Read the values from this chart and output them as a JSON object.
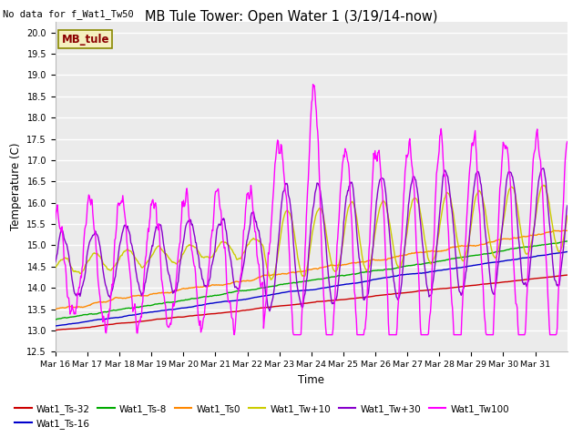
{
  "title": "MB Tule Tower: Open Water 1 (3/19/14-now)",
  "subtitle": "No data for f_Wat1_Tw50",
  "xlabel": "Time",
  "ylabel": "Temperature (C)",
  "ylim": [
    12.5,
    20.25
  ],
  "yticks": [
    12.5,
    13.0,
    13.5,
    14.0,
    14.5,
    15.0,
    15.5,
    16.0,
    16.5,
    17.0,
    17.5,
    18.0,
    18.5,
    19.0,
    19.5,
    20.0
  ],
  "xtick_labels": [
    "Mar 16",
    "Mar 17",
    "Mar 18",
    "Mar 19",
    "Mar 20",
    "Mar 21",
    "Mar 22",
    "Mar 23",
    "Mar 24",
    "Mar 25",
    "Mar 26",
    "Mar 27",
    "Mar 28",
    "Mar 29",
    "Mar 30",
    "Mar 31"
  ],
  "series_colors": {
    "Wat1_Ts-32": "#cc0000",
    "Wat1_Ts-16": "#0000cc",
    "Wat1_Ts-8": "#00aa00",
    "Wat1_Ts0": "#ff8800",
    "Wat1_Tw+10": "#cccc00",
    "Wat1_Tw+30": "#8800cc",
    "Wat1_Tw100": "#ff00ff"
  },
  "watermark_text": "MB_tule",
  "plot_bg_color": "#ebebeb"
}
